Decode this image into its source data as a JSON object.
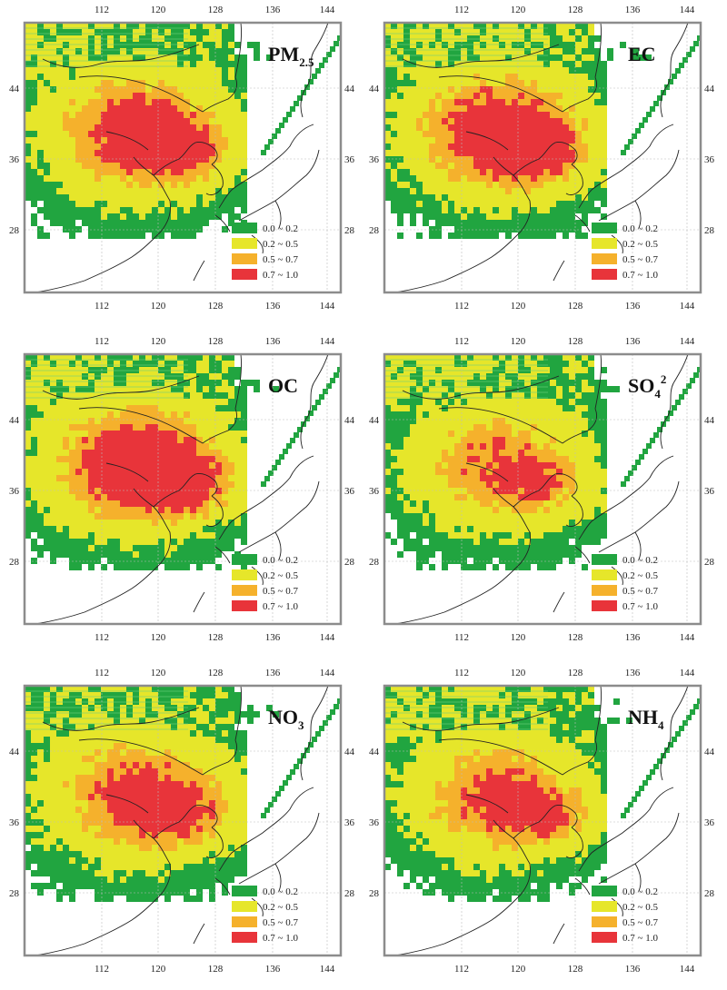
{
  "colors": {
    "green": "#21a540",
    "yellow": "#e6e62a",
    "orange": "#f5b12c",
    "red": "#e8343a",
    "frame": "#8c8c8c",
    "grid": "#bcbcbc",
    "coast": "#222222"
  },
  "legend": [
    {
      "label": "0.0 ~ 0.2",
      "color": "#21a540"
    },
    {
      "label": "0.2 ~ 0.5",
      "color": "#e6e62a"
    },
    {
      "label": "0.5 ~ 0.7",
      "color": "#f5b12c"
    },
    {
      "label": "0.7 ~ 1.0",
      "color": "#e8343a"
    }
  ],
  "lon_ticks": [
    "112",
    "120",
    "128",
    "136",
    "144"
  ],
  "lat_ticks": [
    "44",
    "36",
    "28"
  ],
  "panels": [
    {
      "id": "pm25",
      "main": "PM",
      "sub": "2.5",
      "sup": ""
    },
    {
      "id": "ec",
      "main": "EC",
      "sub": "",
      "sup": ""
    },
    {
      "id": "oc",
      "main": "OC",
      "sub": "",
      "sup": ""
    },
    {
      "id": "so4",
      "main": "SO",
      "sub": "4",
      "sup": "2"
    },
    {
      "id": "no3",
      "main": "NO",
      "sub": "3",
      "sup": ""
    },
    {
      "id": "nh4",
      "main": "NH",
      "sub": "4",
      "sup": ""
    }
  ]
}
